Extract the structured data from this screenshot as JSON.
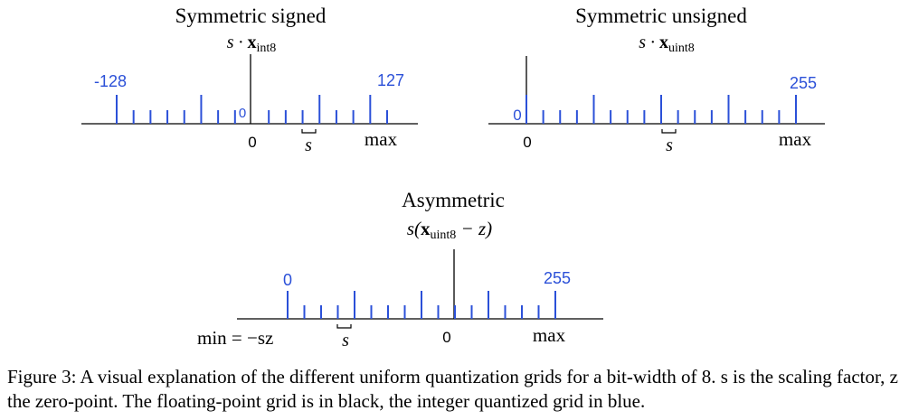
{
  "colors": {
    "float_grid": "#000000",
    "int_grid": "#2b50d8"
  },
  "panels": [
    {
      "title": "Symmetric signed",
      "formula": {
        "prefix": "s · ",
        "var": "x",
        "sub": "int8",
        "suffix": ""
      },
      "labels": {
        "left_value": "-128",
        "right_value": "127",
        "zero_small": "0",
        "zero": "0",
        "scale": "s",
        "max": "max"
      }
    },
    {
      "title": "Symmetric unsigned",
      "formula": {
        "prefix": "s · ",
        "var": "x",
        "sub": "uint8",
        "suffix": ""
      },
      "labels": {
        "zero_small": "0",
        "right_value": "255",
        "zero": "0",
        "scale": "s",
        "max": "max"
      }
    },
    {
      "title": "Asymmetric",
      "formula": {
        "prefix": "s(",
        "var": "x",
        "sub": "uint8",
        "suffix": " − z)"
      },
      "labels": {
        "left_value": "0",
        "right_value": "255",
        "min": "min = −sz",
        "scale": "s",
        "zero": "0",
        "max": "max"
      }
    }
  ],
  "caption": "Figure 3: A visual explanation of the different uniform quantization grids for a bit-width of 8. s is the scaling factor, z the zero-point. The floating-point grid is in black, the integer quantized grid in blue."
}
